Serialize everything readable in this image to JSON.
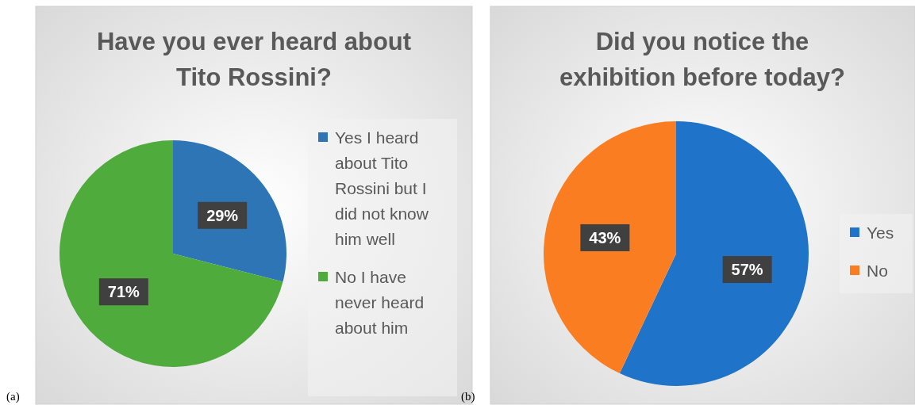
{
  "chart_data": [
    {
      "type": "pie",
      "title": "Have you ever heard about Tito Rossini?",
      "categories": [
        "Yes I heard about Tito Rossini but I did not know him well",
        "No I have never heard about him"
      ],
      "values": [
        29,
        71
      ],
      "colors": [
        "#2e75b6",
        "#4eab3c"
      ],
      "value_labels": [
        "29%",
        "71%"
      ],
      "legend": "right",
      "annotations": [
        "(a)"
      ]
    },
    {
      "type": "pie",
      "title": "Did you notice the exhibition before today?",
      "categories": [
        "Yes",
        "No"
      ],
      "values": [
        57,
        43
      ],
      "colors": [
        "#1f73c9",
        "#fa7d22"
      ],
      "value_labels": [
        "57%",
        "43%"
      ],
      "legend": "right",
      "annotations": [
        "(b)"
      ]
    }
  ]
}
